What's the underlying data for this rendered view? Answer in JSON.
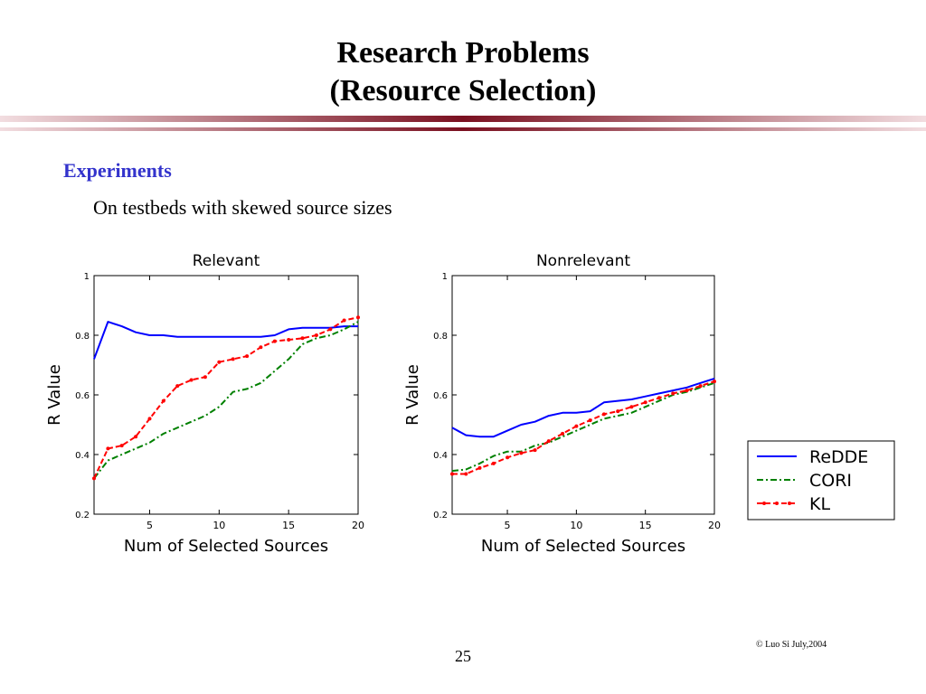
{
  "slide": {
    "title_line1": "Research Problems",
    "title_line2": "(Resource Selection)",
    "section_heading": "Experiments",
    "subheading": "On testbeds with skewed source sizes",
    "footer": "© Luo Si July,2004",
    "page_number": "25",
    "rule_colors": [
      "#7a1020",
      "#f2dde0"
    ]
  },
  "legend": {
    "entries": [
      {
        "label": "ReDDE",
        "color": "#0000ff",
        "style": "solid"
      },
      {
        "label": "CORI",
        "color": "#008000",
        "style": "dash-dot"
      },
      {
        "label": "KL",
        "color": "#ff0000",
        "style": "dashed-dots"
      }
    ]
  },
  "chart_data": [
    {
      "type": "line",
      "title": "Relevant",
      "xlabel": "Num of Selected Sources",
      "ylabel": "R Value",
      "xlim": [
        1,
        20
      ],
      "ylim": [
        0.2,
        1
      ],
      "xticks": [
        5,
        10,
        15,
        20
      ],
      "yticks": [
        0.2,
        0.4,
        0.6,
        0.8,
        1
      ],
      "grid": false,
      "x": [
        1,
        2,
        3,
        4,
        5,
        6,
        7,
        8,
        9,
        10,
        11,
        12,
        13,
        14,
        15,
        16,
        17,
        18,
        19,
        20
      ],
      "series": [
        {
          "name": "ReDDE",
          "color": "#0000ff",
          "style": "solid",
          "values": [
            0.72,
            0.845,
            0.83,
            0.81,
            0.8,
            0.8,
            0.795,
            0.795,
            0.795,
            0.795,
            0.795,
            0.795,
            0.795,
            0.8,
            0.82,
            0.825,
            0.825,
            0.825,
            0.83,
            0.83
          ]
        },
        {
          "name": "CORI",
          "color": "#008000",
          "style": "dash-dot",
          "values": [
            0.32,
            0.38,
            0.4,
            0.42,
            0.44,
            0.47,
            0.49,
            0.51,
            0.53,
            0.56,
            0.61,
            0.62,
            0.64,
            0.68,
            0.72,
            0.77,
            0.79,
            0.8,
            0.82,
            0.845
          ]
        },
        {
          "name": "KL",
          "color": "#ff0000",
          "style": "dashed-dots",
          "values": [
            0.32,
            0.42,
            0.43,
            0.46,
            0.52,
            0.58,
            0.63,
            0.65,
            0.66,
            0.71,
            0.72,
            0.73,
            0.76,
            0.78,
            0.785,
            0.79,
            0.8,
            0.82,
            0.85,
            0.86
          ]
        }
      ]
    },
    {
      "type": "line",
      "title": "Nonrelevant",
      "xlabel": "Num of Selected Sources",
      "ylabel": "R Value",
      "xlim": [
        1,
        20
      ],
      "ylim": [
        0.2,
        1
      ],
      "xticks": [
        5,
        10,
        15,
        20
      ],
      "yticks": [
        0.2,
        0.4,
        0.6,
        0.8,
        1
      ],
      "grid": false,
      "x": [
        1,
        2,
        3,
        4,
        5,
        6,
        7,
        8,
        9,
        10,
        11,
        12,
        13,
        14,
        15,
        16,
        17,
        18,
        19,
        20
      ],
      "series": [
        {
          "name": "ReDDE",
          "color": "#0000ff",
          "style": "solid",
          "values": [
            0.49,
            0.465,
            0.46,
            0.46,
            0.48,
            0.5,
            0.51,
            0.53,
            0.54,
            0.54,
            0.545,
            0.575,
            0.58,
            0.585,
            0.595,
            0.605,
            0.615,
            0.625,
            0.64,
            0.655
          ]
        },
        {
          "name": "CORI",
          "color": "#008000",
          "style": "dash-dot",
          "values": [
            0.345,
            0.35,
            0.37,
            0.395,
            0.41,
            0.41,
            0.43,
            0.44,
            0.46,
            0.48,
            0.5,
            0.52,
            0.53,
            0.54,
            0.56,
            0.58,
            0.6,
            0.61,
            0.625,
            0.64
          ]
        },
        {
          "name": "KL",
          "color": "#ff0000",
          "style": "dashed-dots",
          "values": [
            0.335,
            0.335,
            0.355,
            0.37,
            0.39,
            0.405,
            0.415,
            0.445,
            0.47,
            0.495,
            0.515,
            0.535,
            0.545,
            0.56,
            0.575,
            0.59,
            0.605,
            0.615,
            0.63,
            0.645
          ]
        }
      ]
    }
  ]
}
